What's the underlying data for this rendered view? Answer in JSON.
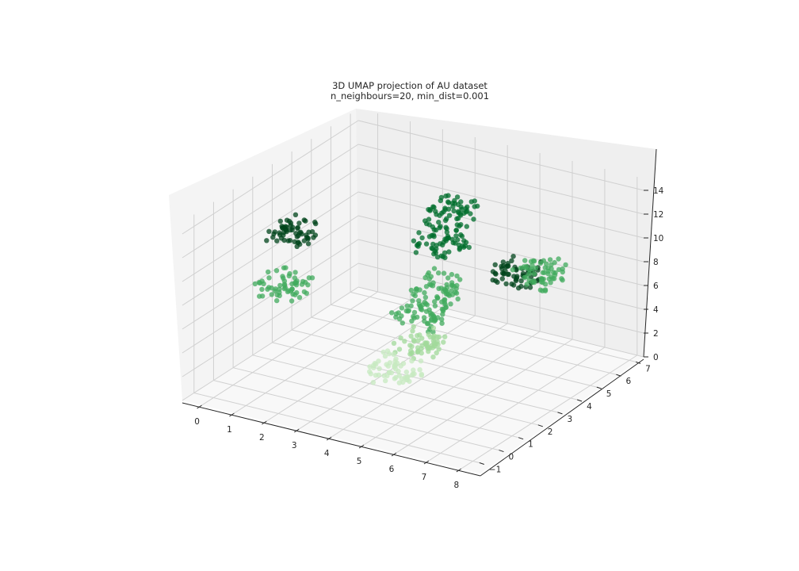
{
  "chart_data": {
    "type": "scatter",
    "title": "3D UMAP projection of AU dataset",
    "subtitle": "n_neighbours=20, min_dist=0.001",
    "x_ticks": [
      "0",
      "1",
      "2",
      "3",
      "4",
      "5",
      "6",
      "7",
      "8"
    ],
    "y_ticks": [
      "−1",
      "0",
      "1",
      "2",
      "3",
      "4",
      "5",
      "6",
      "7"
    ],
    "z_ticks": [
      "0",
      "2",
      "4",
      "6",
      "8",
      "10",
      "12",
      "14"
    ],
    "xlim": [
      -0.6,
      8.2
    ],
    "ylim": [
      -1.6,
      7.4
    ],
    "zlim": [
      0,
      15
    ],
    "grid": true,
    "colormap": "Greens",
    "clusters": [
      {
        "x": 1.2,
        "y": 1.0,
        "z": 12.5,
        "level": 0.95
      },
      {
        "x": 3.0,
        "y": 6.2,
        "z": 10.0,
        "level": 0.85
      },
      {
        "x": 4.0,
        "y": 4.0,
        "z": 10.5,
        "level": 0.8
      },
      {
        "x": 4.5,
        "y": 3.0,
        "z": 8.0,
        "level": 0.55
      },
      {
        "x": 1.0,
        "y": 1.0,
        "z": 8.0,
        "level": 0.55
      },
      {
        "x": 4.0,
        "y": 3.0,
        "z": 5.5,
        "level": 0.5
      },
      {
        "x": 4.0,
        "y": 3.0,
        "z": 3.0,
        "level": 0.3
      },
      {
        "x": 3.5,
        "y": 2.5,
        "z": 1.0,
        "level": 0.2
      },
      {
        "x": 7.2,
        "y": 2.5,
        "z": 11.5,
        "level": 1.0
      },
      {
        "x": 7.5,
        "y": 3.2,
        "z": 11.0,
        "level": 0.6
      }
    ],
    "colors": {
      "dark": "#00441b",
      "mid": "#2e9650",
      "light": "#5db96b",
      "pale": "#c7e9c0"
    }
  }
}
